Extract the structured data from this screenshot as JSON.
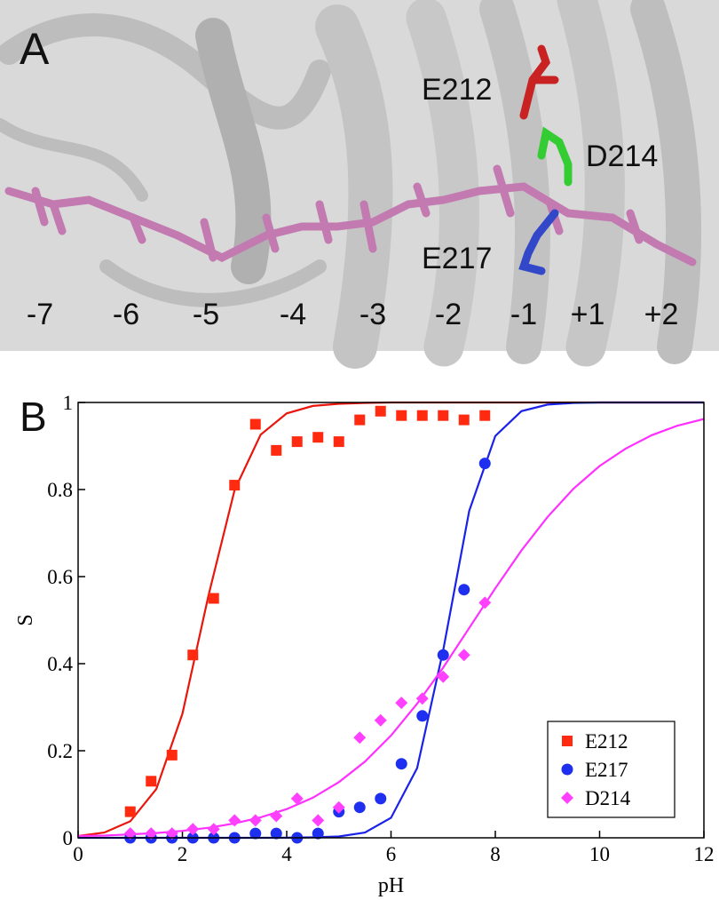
{
  "panel_a": {
    "label": "A",
    "residues": [
      "E212",
      "D214",
      "E217"
    ],
    "subsites": [
      "-7",
      "-6",
      "-5",
      "-4",
      "-3",
      "-2",
      "-1",
      "+1",
      "+2"
    ]
  },
  "chart_data": {
    "type": "scatter",
    "panel_label": "B",
    "xlabel": "pH",
    "ylabel": "S",
    "xlim": [
      0,
      12
    ],
    "ylim": [
      0,
      1
    ],
    "xticks": [
      0,
      2,
      4,
      6,
      8,
      10,
      12
    ],
    "yticks": [
      0,
      0.2,
      0.4,
      0.6,
      0.8,
      1
    ],
    "legend": "lower right",
    "x": [
      1.0,
      1.4,
      1.8,
      2.2,
      2.6,
      3.0,
      3.4,
      3.8,
      4.2,
      4.6,
      5.0,
      5.4,
      5.8,
      6.2,
      6.6,
      7.0,
      7.4,
      7.8
    ],
    "series": [
      {
        "name": "E212",
        "color": "#ff2a10",
        "marker": "square",
        "values": [
          0.06,
          0.13,
          0.19,
          0.42,
          0.55,
          0.81,
          0.95,
          0.89,
          0.91,
          0.92,
          0.91,
          0.96,
          0.98,
          0.97,
          0.97,
          0.97,
          0.96,
          0.97
        ]
      },
      {
        "name": "E217",
        "color": "#1f2ff0",
        "marker": "circle",
        "values": [
          0,
          0,
          0,
          0,
          0,
          0,
          0.01,
          0.01,
          0,
          0.01,
          0.06,
          0.07,
          0.09,
          0.17,
          0.28,
          0.42,
          0.57,
          0.86
        ]
      },
      {
        "name": "D214",
        "color": "#ff40ff",
        "marker": "diamond",
        "values": [
          0.01,
          0.01,
          0.01,
          0.02,
          0.02,
          0.04,
          0.04,
          0.05,
          0.09,
          0.04,
          0.07,
          0.23,
          0.27,
          0.31,
          0.32,
          0.37,
          0.42,
          0.54
        ]
      }
    ],
    "fit_x": [
      0,
      0.5,
      1,
      1.5,
      2,
      2.5,
      3,
      3.5,
      4,
      4.5,
      5,
      5.5,
      6,
      6.5,
      7,
      7.5,
      8,
      8.5,
      9,
      9.5,
      10,
      10.5,
      11,
      11.5,
      12
    ],
    "fits": [
      {
        "color": "#e8160c",
        "values": [
          0.004,
          0.012,
          0.038,
          0.112,
          0.285,
          0.557,
          0.799,
          0.926,
          0.975,
          0.992,
          0.997,
          0.999,
          1,
          1,
          1,
          1,
          1,
          1,
          1,
          1,
          1,
          1,
          1,
          1,
          1
        ]
      },
      {
        "color": "#1a22e8",
        "values": [
          0,
          0,
          0,
          0,
          0,
          0,
          0,
          0,
          0.0002,
          0.001,
          0.003,
          0.012,
          0.046,
          0.16,
          0.431,
          0.751,
          0.923,
          0.98,
          0.995,
          0.999,
          1,
          1,
          1,
          1,
          1
        ]
      },
      {
        "color": "#ff30ff",
        "values": [
          0.004,
          0.005,
          0.008,
          0.011,
          0.016,
          0.023,
          0.033,
          0.047,
          0.066,
          0.092,
          0.128,
          0.175,
          0.235,
          0.308,
          0.391,
          0.482,
          0.573,
          0.66,
          0.737,
          0.802,
          0.854,
          0.894,
          0.925,
          0.947,
          0.962
        ]
      }
    ]
  }
}
